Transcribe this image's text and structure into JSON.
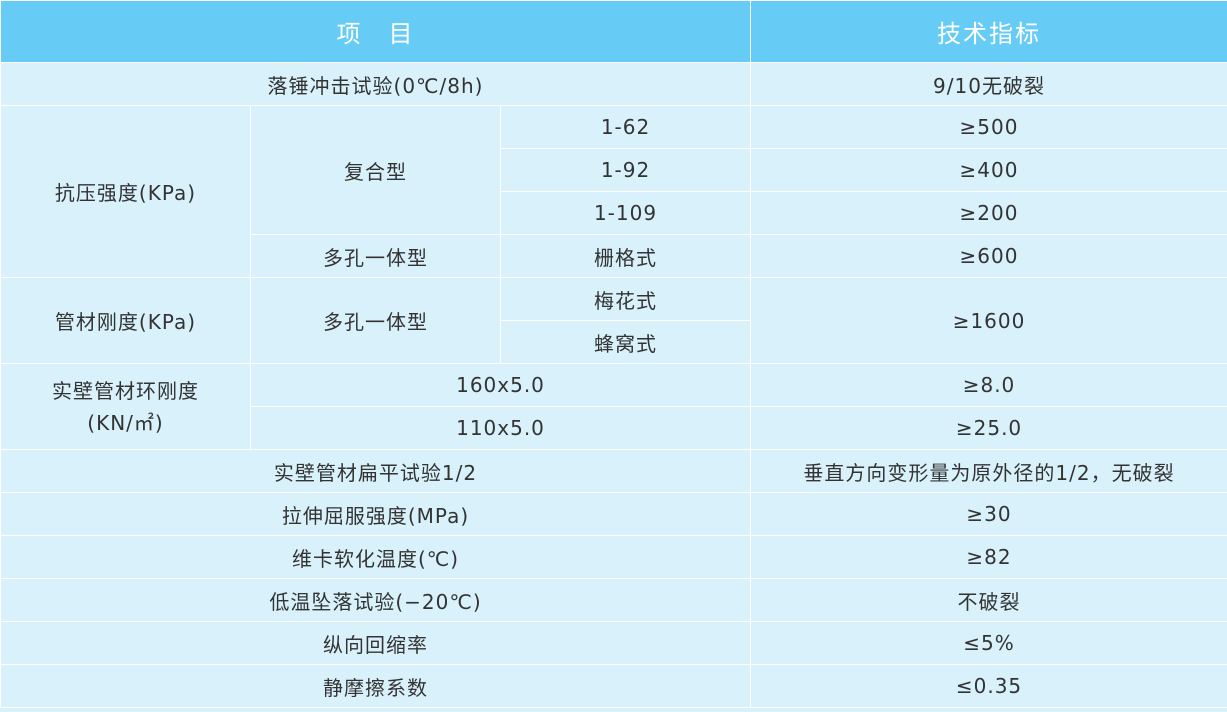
{
  "header": {
    "item": "项　目",
    "spec": "技术指标"
  },
  "rows": {
    "drop": {
      "label": "落锤冲击试验(0℃/8h)",
      "value": "9/10无破裂"
    },
    "compress": {
      "label": "抗压强度(KPa)",
      "composite": "复合型",
      "c1": {
        "model": "1-62",
        "value": "≥500"
      },
      "c2": {
        "model": "1-92",
        "value": "≥400"
      },
      "c3": {
        "model": "1-109",
        "value": "≥200"
      },
      "multi": "多孔一体型",
      "grid": {
        "model": "栅格式",
        "value": "≥600"
      }
    },
    "stiffness": {
      "label": "管材刚度(KPa)",
      "multi": "多孔一体型",
      "m1": "梅花式",
      "m2": "蜂窝式",
      "value": "≥1600"
    },
    "ring": {
      "label1": "实壁管材环刚度",
      "label2": "(KN/㎡)",
      "r1": {
        "size": "160x5.0",
        "value": "≥8.0"
      },
      "r2": {
        "size": "110x5.0",
        "value": "≥25.0"
      }
    },
    "flat": {
      "label": "实壁管材扁平试验1/2",
      "value": "垂直方向变形量为原外径的1/2，无破裂"
    },
    "tensile": {
      "label": "拉伸屈服强度(MPa)",
      "value": "≥30"
    },
    "vicat": {
      "label": "维卡软化温度(℃)",
      "value": "≥82"
    },
    "lowtemp": {
      "label": "低温坠落试验(−20℃)",
      "value": "不破裂"
    },
    "shrink": {
      "label": "纵向回缩率",
      "value": "≤5%"
    },
    "friction": {
      "label": "静摩擦系数",
      "value": "≤0.35"
    }
  },
  "colors": {
    "header_bg": "#66ccf5",
    "body_bg": "#d8f1fb",
    "border": "#ffffff",
    "text": "#333333"
  }
}
